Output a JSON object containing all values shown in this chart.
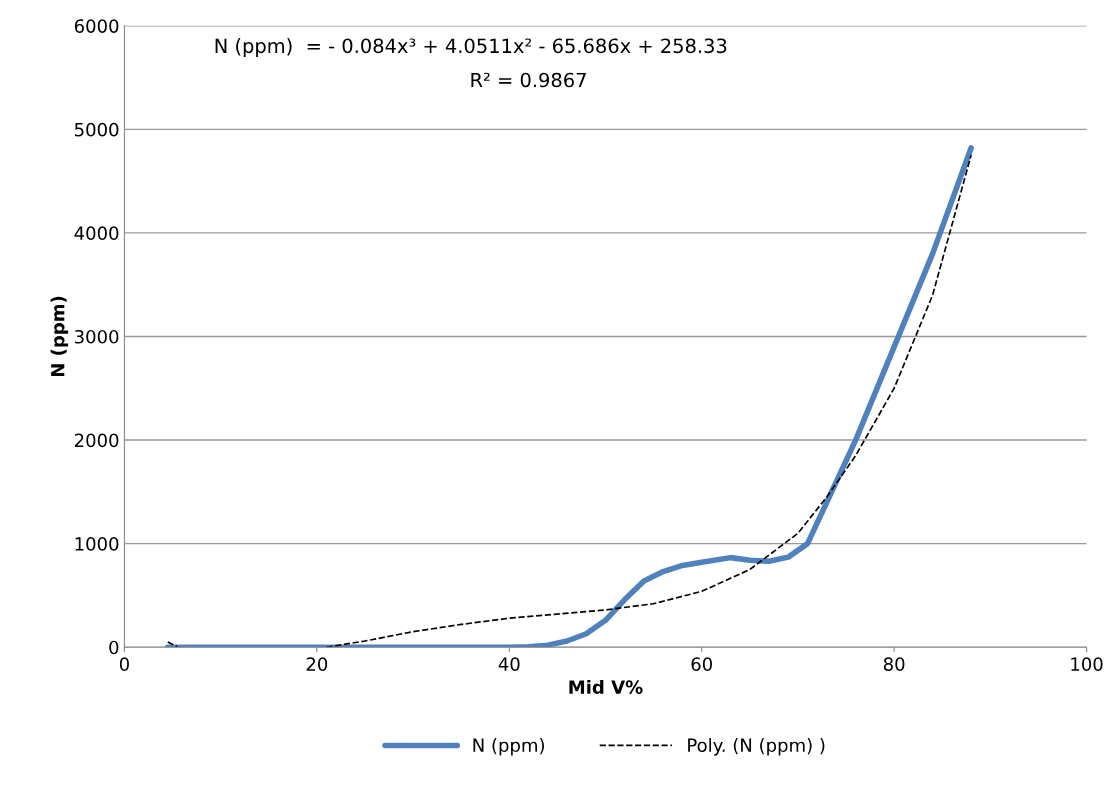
{
  "chart_data": {
    "type": "line",
    "xlabel": "Mid V%",
    "ylabel": "N (ppm)",
    "annotations": [
      "N (ppm)  = - 0.084x³ + 4.0511x² - 65.686x + 258.33",
      "R² = 0.9867"
    ],
    "xlim": [
      0,
      100
    ],
    "xticks": [
      0,
      20,
      40,
      60,
      80,
      100
    ],
    "ylim": [
      0,
      6000
    ],
    "yticks": [
      0,
      1000,
      2000,
      3000,
      4000,
      5000,
      6000
    ],
    "grid": "y",
    "legend": "bottom",
    "marker": "none",
    "series": [
      {
        "name": "N (ppm)",
        "color": "#4f81bd",
        "line_style": "solid",
        "x": [
          4.5,
          20,
          30,
          40,
          42,
          44,
          46,
          48,
          50,
          52,
          54,
          56,
          58,
          60,
          63,
          65,
          67,
          69,
          71,
          73,
          76,
          80,
          84,
          88
        ],
        "values": [
          0,
          0,
          0,
          0,
          5,
          20,
          60,
          130,
          260,
          460,
          640,
          730,
          790,
          820,
          865,
          840,
          830,
          870,
          1000,
          1400,
          2000,
          2900,
          3800,
          4820
        ]
      },
      {
        "name": "Poly. (N (ppm) )",
        "color": "#000000",
        "line_style": "dashed",
        "x": [
          4.5,
          5.5,
          10,
          21,
          25,
          30,
          35,
          40,
          45,
          50,
          55,
          60,
          65,
          70,
          73,
          76,
          80,
          84,
          88
        ],
        "values": [
          50,
          5,
          null,
          0,
          60,
          150,
          220,
          280,
          320,
          360,
          420,
          540,
          750,
          1100,
          1450,
          1850,
          2500,
          3400,
          4750
        ]
      }
    ]
  }
}
